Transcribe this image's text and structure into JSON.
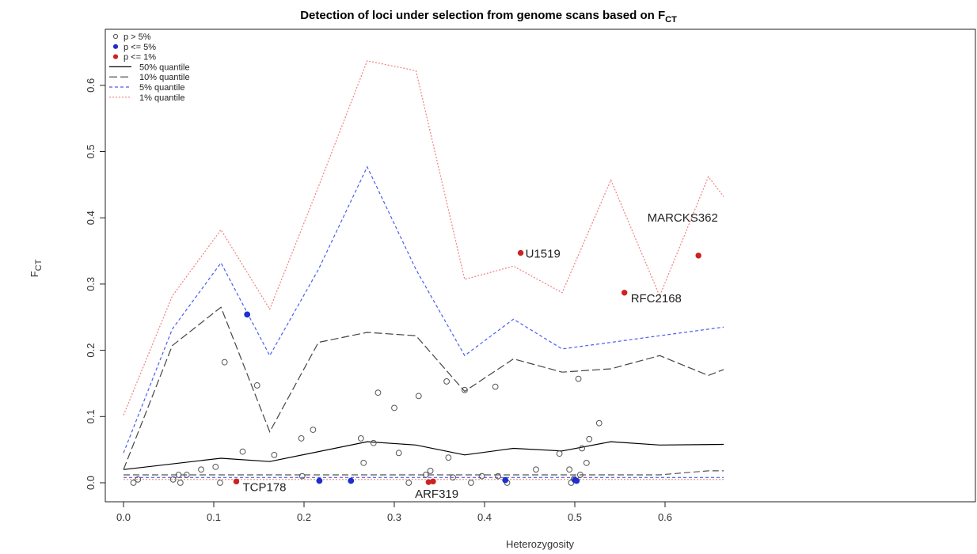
{
  "chart_data": {
    "type": "scatter",
    "title": {
      "main": "Detection of loci under selection from genome scans based on F",
      "sub": "CT"
    },
    "xlabel": "Heterozygosity",
    "ylabel": {
      "main": "F",
      "sub": "CT"
    },
    "xlim": [
      0.0,
      0.665
    ],
    "ylim": [
      0.0,
      0.65
    ],
    "xticks": [
      "0.0",
      "0.1",
      "0.2",
      "0.3",
      "0.4",
      "0.5",
      "0.6"
    ],
    "yticks": [
      "0.0",
      "0.1",
      "0.2",
      "0.3",
      "0.4",
      "0.5",
      "0.6"
    ],
    "legend": {
      "position": "top-left",
      "entries": [
        {
          "label": "p > 5%",
          "kind": "point",
          "color": "#555555",
          "filled": false
        },
        {
          "label": "p <= 5%",
          "kind": "point",
          "color": "#1f2ecc",
          "filled": true
        },
        {
          "label": "p <= 1%",
          "kind": "point",
          "color": "#cc2222",
          "filled": true
        },
        {
          "label": "50% quantile",
          "kind": "line",
          "color": "#000000",
          "dash": "none"
        },
        {
          "label": "10% quantile",
          "kind": "line",
          "color": "#444444",
          "dash": "10,4"
        },
        {
          "label": "5% quantile",
          "kind": "line",
          "color": "#4a5ef0",
          "dash": "4,3"
        },
        {
          "label": "1% quantile",
          "kind": "line",
          "color": "#f08080",
          "dash": "2,2"
        }
      ]
    },
    "quantile_lines": [
      {
        "name": "50% quantile",
        "color": "#000000",
        "dash": "none",
        "points": [
          [
            0.0,
            0.02
          ],
          [
            0.108,
            0.037
          ],
          [
            0.162,
            0.032
          ],
          [
            0.27,
            0.062
          ],
          [
            0.324,
            0.057
          ],
          [
            0.378,
            0.042
          ],
          [
            0.432,
            0.052
          ],
          [
            0.486,
            0.048
          ],
          [
            0.54,
            0.062
          ],
          [
            0.594,
            0.057
          ],
          [
            0.665,
            0.058
          ]
        ]
      },
      {
        "name": "10% quantile",
        "color": "#444444",
        "dash": "10,4",
        "points": [
          [
            0.0,
            0.02
          ],
          [
            0.054,
            0.207
          ],
          [
            0.108,
            0.265
          ],
          [
            0.162,
            0.077
          ],
          [
            0.216,
            0.212
          ],
          [
            0.27,
            0.227
          ],
          [
            0.324,
            0.222
          ],
          [
            0.378,
            0.138
          ],
          [
            0.432,
            0.187
          ],
          [
            0.486,
            0.167
          ],
          [
            0.54,
            0.172
          ],
          [
            0.594,
            0.192
          ],
          [
            0.648,
            0.162
          ],
          [
            0.665,
            0.171
          ]
        ]
      },
      {
        "name": "5% quantile",
        "color": "#4a5ef0",
        "dash": "4,3",
        "points": [
          [
            0.0,
            0.045
          ],
          [
            0.054,
            0.232
          ],
          [
            0.108,
            0.332
          ],
          [
            0.162,
            0.192
          ],
          [
            0.216,
            0.322
          ],
          [
            0.27,
            0.477
          ],
          [
            0.324,
            0.322
          ],
          [
            0.378,
            0.192
          ],
          [
            0.432,
            0.247
          ],
          [
            0.486,
            0.202
          ],
          [
            0.54,
            0.212
          ],
          [
            0.594,
            0.222
          ],
          [
            0.665,
            0.235
          ]
        ]
      },
      {
        "name": "1% quantile",
        "color": "#f08080",
        "dash": "2,2",
        "points": [
          [
            0.0,
            0.102
          ],
          [
            0.054,
            0.282
          ],
          [
            0.108,
            0.382
          ],
          [
            0.162,
            0.262
          ],
          [
            0.216,
            0.447
          ],
          [
            0.27,
            0.637
          ],
          [
            0.324,
            0.622
          ],
          [
            0.378,
            0.307
          ],
          [
            0.432,
            0.327
          ],
          [
            0.486,
            0.287
          ],
          [
            0.54,
            0.457
          ],
          [
            0.594,
            0.282
          ],
          [
            0.648,
            0.462
          ],
          [
            0.665,
            0.432
          ]
        ]
      },
      {
        "name": "10% baseline",
        "color": "#555555",
        "dash": "8,4",
        "points": [
          [
            0.0,
            0.012
          ],
          [
            0.594,
            0.012
          ],
          [
            0.648,
            0.018
          ],
          [
            0.665,
            0.018
          ]
        ]
      },
      {
        "name": "5% baseline",
        "color": "#4a5ef0",
        "dash": "4,3",
        "points": [
          [
            0.0,
            0.008
          ],
          [
            0.665,
            0.008
          ]
        ]
      },
      {
        "name": "1% baseline",
        "color": "#f08080",
        "dash": "2,2",
        "points": [
          [
            0.0,
            0.005
          ],
          [
            0.665,
            0.005
          ]
        ]
      }
    ],
    "points_gray": [
      [
        0.011,
        0.0
      ],
      [
        0.016,
        0.005
      ],
      [
        0.055,
        0.005
      ],
      [
        0.061,
        0.012
      ],
      [
        0.063,
        0.0
      ],
      [
        0.07,
        0.012
      ],
      [
        0.086,
        0.02
      ],
      [
        0.102,
        0.024
      ],
      [
        0.107,
        0.0
      ],
      [
        0.112,
        0.182
      ],
      [
        0.132,
        0.047
      ],
      [
        0.148,
        0.147
      ],
      [
        0.167,
        0.042
      ],
      [
        0.197,
        0.067
      ],
      [
        0.21,
        0.08
      ],
      [
        0.198,
        0.01
      ],
      [
        0.263,
        0.067
      ],
      [
        0.266,
        0.03
      ],
      [
        0.277,
        0.06
      ],
      [
        0.282,
        0.136
      ],
      [
        0.3,
        0.113
      ],
      [
        0.305,
        0.045
      ],
      [
        0.316,
        0.0
      ],
      [
        0.327,
        0.131
      ],
      [
        0.335,
        0.012
      ],
      [
        0.34,
        0.018
      ],
      [
        0.358,
        0.153
      ],
      [
        0.36,
        0.038
      ],
      [
        0.365,
        0.008
      ],
      [
        0.378,
        0.14
      ],
      [
        0.385,
        0.0
      ],
      [
        0.397,
        0.01
      ],
      [
        0.412,
        0.145
      ],
      [
        0.415,
        0.01
      ],
      [
        0.425,
        0.0
      ],
      [
        0.483,
        0.044
      ],
      [
        0.494,
        0.02
      ],
      [
        0.496,
        0.0
      ],
      [
        0.504,
        0.157
      ],
      [
        0.506,
        0.012
      ],
      [
        0.508,
        0.052
      ],
      [
        0.513,
        0.03
      ],
      [
        0.516,
        0.066
      ],
      [
        0.527,
        0.09
      ],
      [
        0.457,
        0.02
      ],
      [
        0.499,
        0.006
      ]
    ],
    "points_blue": [
      [
        0.137,
        0.254
      ],
      [
        0.217,
        0.003
      ],
      [
        0.252,
        0.003
      ],
      [
        0.423,
        0.004
      ],
      [
        0.5,
        0.004
      ],
      [
        0.502,
        0.003
      ]
    ],
    "points_red": [
      [
        0.125,
        0.002
      ],
      [
        0.44,
        0.347
      ],
      [
        0.555,
        0.287
      ],
      [
        0.637,
        0.343
      ],
      [
        0.338,
        0.001
      ],
      [
        0.343,
        0.002
      ]
    ],
    "annotations": [
      {
        "text": "TCP178",
        "x": 0.125,
        "y": 0.002,
        "placement": "right-below"
      },
      {
        "text": "ARF319",
        "x": 0.34,
        "y": 0.001,
        "placement": "below"
      },
      {
        "text": "U1519",
        "x": 0.44,
        "y": 0.347,
        "placement": "right"
      },
      {
        "text": "RFC2168",
        "x": 0.555,
        "y": 0.287,
        "placement": "right-below"
      },
      {
        "text": "MARCKS362",
        "x": 0.637,
        "y": 0.343,
        "placement": "above-left"
      }
    ]
  }
}
